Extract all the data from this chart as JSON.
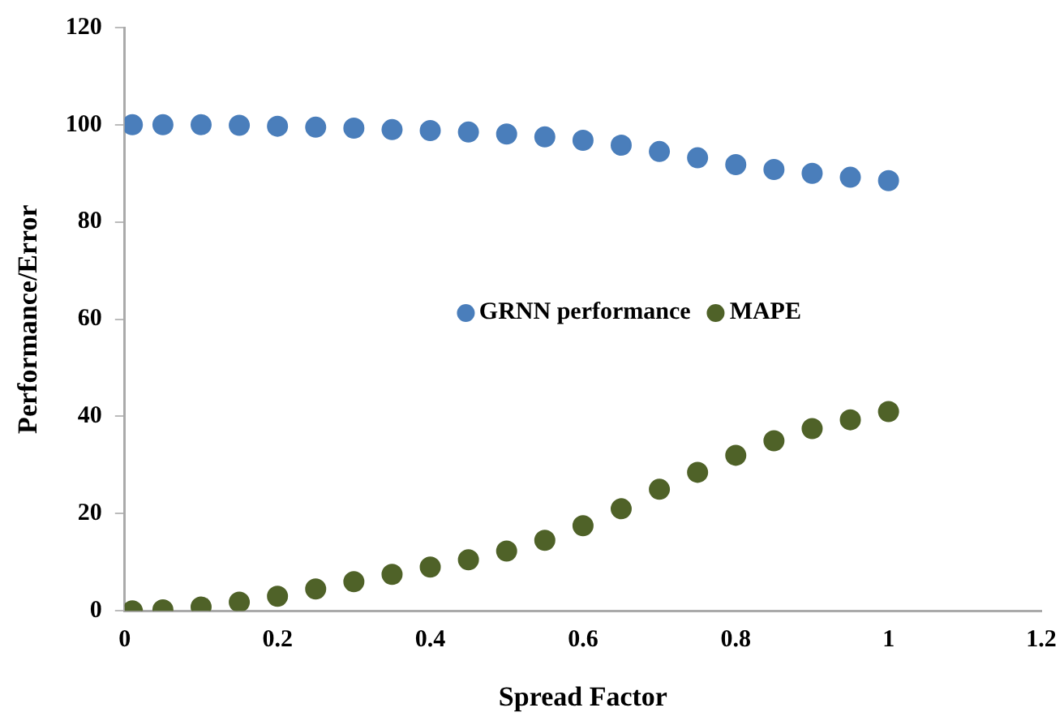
{
  "chart_data": {
    "type": "scatter",
    "xlabel": "Spread Factor",
    "ylabel": "Performance/Error",
    "xlim": [
      0,
      1.2
    ],
    "xticks": [
      0,
      0.2,
      0.4,
      0.6,
      0.8,
      1,
      1.2
    ],
    "ylim": [
      0,
      120
    ],
    "yticks": [
      0,
      20,
      40,
      60,
      80,
      100,
      120
    ],
    "grid": false,
    "legend": "center",
    "marker": "circle",
    "x": [
      0.01,
      0.05,
      0.1,
      0.15,
      0.2,
      0.25,
      0.3,
      0.35,
      0.4,
      0.45,
      0.5,
      0.55,
      0.6,
      0.65,
      0.7,
      0.75,
      0.8,
      0.85,
      0.9,
      0.95,
      1
    ],
    "series": [
      {
        "name": "GRNN performance",
        "color": "#4a7ebb",
        "values": [
          100,
          100,
          100,
          99.9,
          99.7,
          99.5,
          99.3,
          99,
          98.8,
          98.5,
          98.1,
          97.5,
          96.8,
          95.8,
          94.5,
          93.2,
          91.8,
          90.8,
          90,
          89.2,
          88.5
        ]
      },
      {
        "name": "MAPE",
        "color": "#4f6228",
        "values": [
          0,
          0.2,
          0.8,
          1.8,
          3,
          4.5,
          6,
          7.5,
          9,
          10.5,
          12.3,
          14.5,
          17.5,
          21,
          25,
          28.5,
          32,
          35,
          37.5,
          39.3,
          41
        ]
      }
    ]
  }
}
